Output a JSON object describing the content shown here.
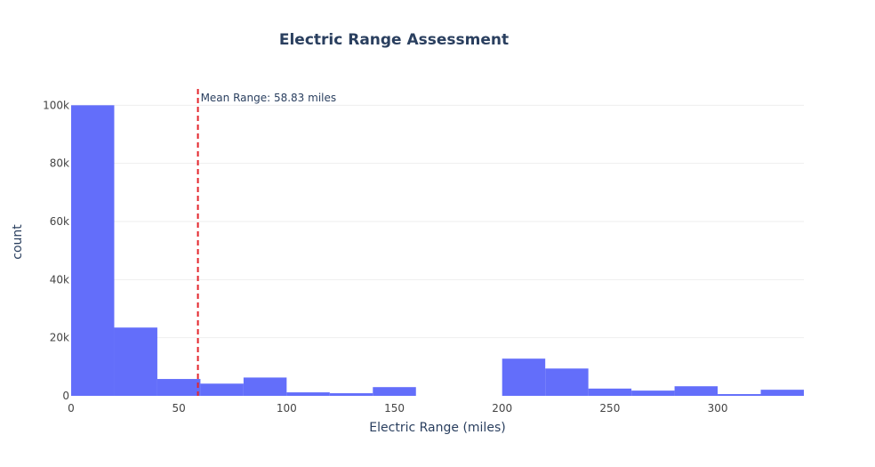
{
  "chart_data": {
    "type": "bar",
    "title": "Electric Range Assessment",
    "xlabel": "Electric Range (miles)",
    "ylabel": "count",
    "xlim": [
      0,
      340
    ],
    "ylim": [
      0,
      105000
    ],
    "bin_width": 20,
    "bins": [
      {
        "start": 0,
        "end": 20,
        "count": 100000
      },
      {
        "start": 20,
        "end": 40,
        "count": 23500
      },
      {
        "start": 40,
        "end": 60,
        "count": 5800
      },
      {
        "start": 60,
        "end": 80,
        "count": 4200
      },
      {
        "start": 80,
        "end": 100,
        "count": 6300
      },
      {
        "start": 100,
        "end": 120,
        "count": 1200
      },
      {
        "start": 120,
        "end": 140,
        "count": 900
      },
      {
        "start": 140,
        "end": 160,
        "count": 3000
      },
      {
        "start": 160,
        "end": 180,
        "count": 0
      },
      {
        "start": 180,
        "end": 200,
        "count": 0
      },
      {
        "start": 200,
        "end": 220,
        "count": 12800
      },
      {
        "start": 220,
        "end": 240,
        "count": 9400
      },
      {
        "start": 240,
        "end": 260,
        "count": 2500
      },
      {
        "start": 260,
        "end": 280,
        "count": 1800
      },
      {
        "start": 280,
        "end": 300,
        "count": 3300
      },
      {
        "start": 300,
        "end": 320,
        "count": 600
      },
      {
        "start": 320,
        "end": 340,
        "count": 2100
      }
    ],
    "x_ticks": [
      {
        "value": 0,
        "label": "0"
      },
      {
        "value": 50,
        "label": "50"
      },
      {
        "value": 100,
        "label": "100"
      },
      {
        "value": 150,
        "label": "150"
      },
      {
        "value": 200,
        "label": "200"
      },
      {
        "value": 250,
        "label": "250"
      },
      {
        "value": 300,
        "label": "300"
      }
    ],
    "y_ticks": [
      {
        "value": 0,
        "label": "0"
      },
      {
        "value": 20000,
        "label": "20k"
      },
      {
        "value": 40000,
        "label": "40k"
      },
      {
        "value": 60000,
        "label": "60k"
      },
      {
        "value": 80000,
        "label": "80k"
      },
      {
        "value": 100000,
        "label": "100k"
      }
    ],
    "mean_line": {
      "value": 58.83,
      "label": "Mean Range: 58.83 miles"
    },
    "grid": true,
    "colors": {
      "bar": "#636efa",
      "mean_line": "#e3242b",
      "text": "#2a3f5f",
      "tick": "#444444",
      "grid": "#eeeeee"
    }
  }
}
